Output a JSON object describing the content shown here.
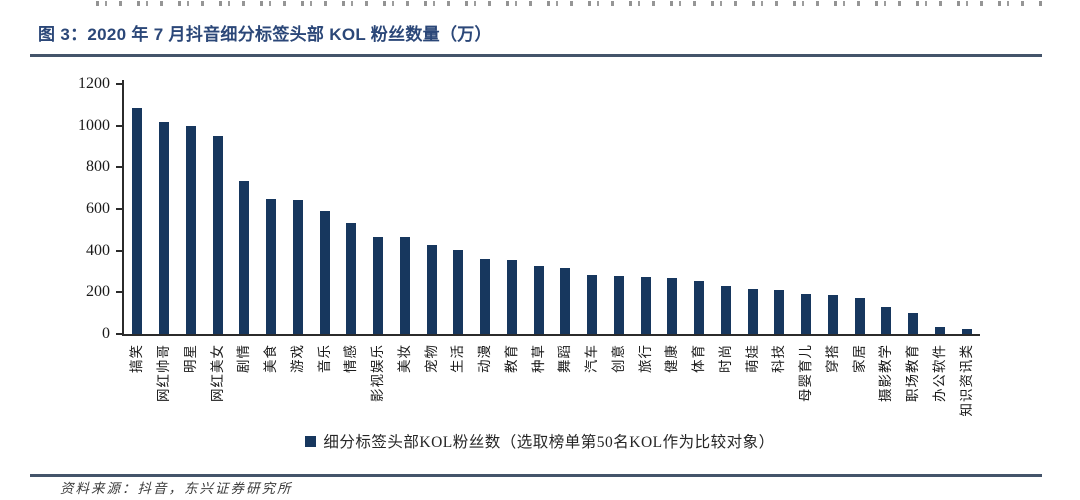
{
  "header": {
    "title": "图 3：2020 年 7 月抖音细分标签头部 KOL 粉丝数量（万）"
  },
  "colors": {
    "bar": "#17375e",
    "title_text": "#2b4778",
    "rule": "#44546a",
    "axis": "#2b2b2b"
  },
  "chart_data": {
    "type": "bar",
    "title": "2020 年 7 月抖音细分标签头部 KOL 粉丝数量（万）",
    "categories": [
      "搞笑",
      "网红帅哥",
      "明星",
      "网红美女",
      "剧情",
      "美食",
      "游戏",
      "音乐",
      "情感",
      "影视娱乐",
      "美妆",
      "宠物",
      "生活",
      "动漫",
      "教育",
      "种草",
      "舞蹈",
      "汽车",
      "创意",
      "旅行",
      "健康",
      "体育",
      "时尚",
      "萌娃",
      "科技",
      "母婴育儿",
      "穿搭",
      "家居",
      "摄影教学",
      "职场教育",
      "办公软件",
      "知识资讯类"
    ],
    "values": [
      1085,
      1020,
      1000,
      950,
      735,
      650,
      645,
      590,
      535,
      465,
      465,
      425,
      405,
      360,
      355,
      325,
      315,
      285,
      280,
      275,
      270,
      255,
      230,
      215,
      210,
      190,
      185,
      175,
      130,
      100,
      35,
      25
    ],
    "series_name": "细分标签头部KOL粉丝数（选取榜单第50名KOL作为比较对象）",
    "xlabel": "",
    "ylabel": "",
    "ylim": [
      0,
      1200
    ],
    "yticks": [
      0,
      200,
      400,
      600,
      800,
      1000,
      1200
    ],
    "grid": false,
    "legend_position": "bottom",
    "bar_color": "#17375e",
    "x_tick_label_rotation_deg": -90
  },
  "footer": {
    "source": "资料来源：抖音，东兴证券研究所"
  }
}
